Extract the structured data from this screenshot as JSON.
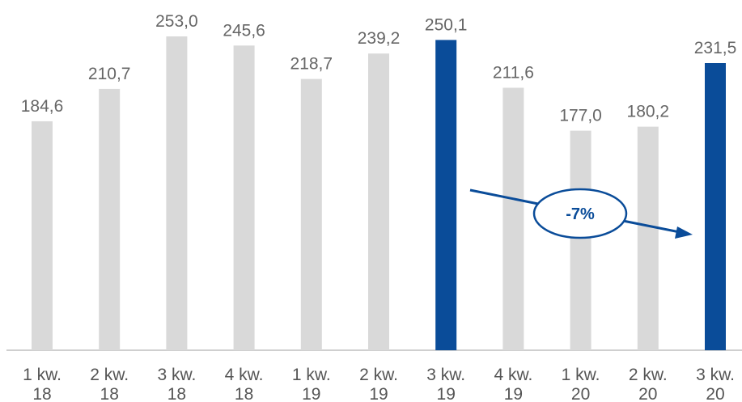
{
  "chart_data": {
    "type": "bar",
    "title": "",
    "xlabel": "",
    "ylabel": "",
    "categories": [
      [
        "1 kw.",
        "18"
      ],
      [
        "2 kw.",
        "18"
      ],
      [
        "3 kw.",
        "18"
      ],
      [
        "4 kw.",
        "18"
      ],
      [
        "1 kw.",
        "19"
      ],
      [
        "2 kw.",
        "19"
      ],
      [
        "3 kw.",
        "19"
      ],
      [
        "4 kw.",
        "19"
      ],
      [
        "1 kw.",
        "20"
      ],
      [
        "2 kw.",
        "20"
      ],
      [
        "3 kw.",
        "20"
      ]
    ],
    "values": [
      184.6,
      210.7,
      253.0,
      245.6,
      218.7,
      239.2,
      250.1,
      211.6,
      177.0,
      180.2,
      231.5
    ],
    "value_labels": [
      "184,6",
      "210,7",
      "253,0",
      "245,6",
      "218,7",
      "239,2",
      "250,1",
      "211,6",
      "177,0",
      "180,2",
      "231,5"
    ],
    "highlighted": [
      6,
      10
    ],
    "ylim": [
      0,
      260
    ],
    "grid": false,
    "annotation": {
      "text": "-7%",
      "from_index": 6,
      "to_index": 10
    },
    "colors": {
      "bar": "#d9d9d9",
      "highlight": "#0a4c99",
      "axis": "#bfbfbf"
    }
  }
}
